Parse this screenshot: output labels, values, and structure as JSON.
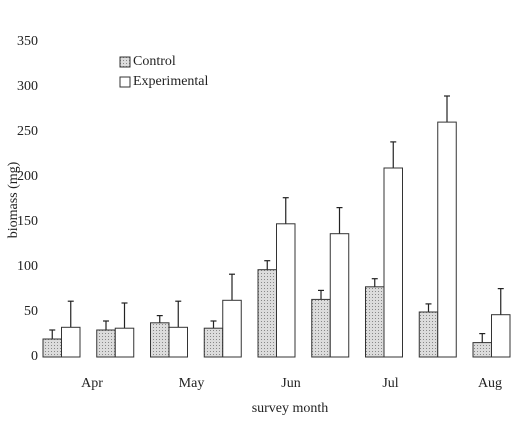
{
  "chart_data": {
    "type": "bar",
    "categories": [
      "Apr",
      null,
      "May",
      null,
      "Jun",
      null,
      "Jul",
      null,
      "Aug"
    ],
    "series": [
      {
        "name": "Control",
        "color": "#cfcfcf",
        "values": [
          20,
          30,
          38,
          32,
          97,
          64,
          78,
          50,
          16
        ],
        "errors": [
          10,
          10,
          8,
          8,
          10,
          10,
          9,
          9,
          10
        ]
      },
      {
        "name": "Experimental",
        "color": "#ffffff",
        "values": [
          33,
          32,
          33,
          63,
          148,
          137,
          210,
          261,
          47
        ],
        "errors": [
          29,
          28,
          29,
          29,
          29,
          29,
          29,
          29,
          29
        ]
      }
    ],
    "ylim": [
      0,
      350
    ],
    "yticks": [
      0,
      50,
      100,
      150,
      200,
      250,
      300,
      350
    ],
    "ylabel": "biomass (mg)",
    "xlabel": "survey month",
    "legend": "upper-left",
    "grid": false
  }
}
